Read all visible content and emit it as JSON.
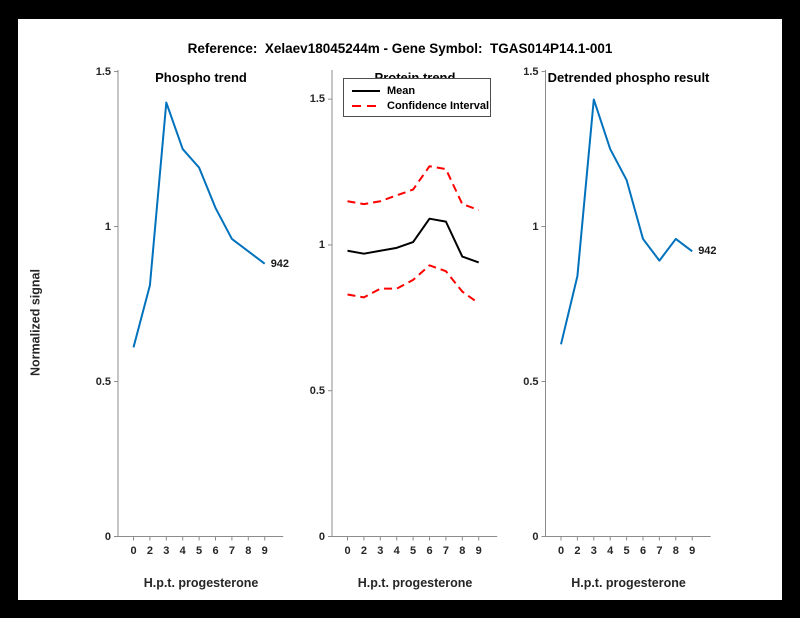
{
  "figure": {
    "title": "Reference:  Xelaev18045244m - Gene Symbol:  TGAS014P14.1-001",
    "background_color": "#000000",
    "figure_color": "#ffffff",
    "accent_blue": "#0072BD",
    "accent_red": "#FF0000",
    "axis_color": "#8c8c8c"
  },
  "chart_data": [
    {
      "type": "line",
      "title": "Phospho trend",
      "xlabel": "H.p.t. progesterone",
      "ylabel": "Normalized signal",
      "categories": [
        "0",
        "2",
        "3",
        "4",
        "5",
        "6",
        "7",
        "8",
        "9"
      ],
      "yticks": [
        0,
        0.5,
        1,
        1.5
      ],
      "ytick_labels": [
        "0",
        "0.5",
        "1",
        "1.5"
      ],
      "ylim": [
        0,
        1.505
      ],
      "grid": false,
      "series": [
        {
          "name": "phospho-trend",
          "color": "#0072BD",
          "style": "solid",
          "values": [
            0.61,
            0.81,
            1.4,
            1.25,
            1.19,
            1.06,
            0.96,
            0.92,
            0.88
          ]
        }
      ],
      "end_label": "942"
    },
    {
      "type": "line",
      "title": "Protein trend",
      "xlabel": "H.p.t. progesterone",
      "ylabel": "",
      "categories": [
        "0",
        "2",
        "3",
        "4",
        "5",
        "6",
        "7",
        "8",
        "9"
      ],
      "yticks": [
        0,
        0.5,
        1,
        1.5
      ],
      "ytick_labels": [
        "0",
        "0.5",
        "1",
        "1.5"
      ],
      "ylim": [
        0,
        1.6
      ],
      "grid": false,
      "legend": [
        {
          "label": "Mean",
          "color": "#000000",
          "style": "solid"
        },
        {
          "label": "Confidence Interval",
          "color": "#FF0000",
          "style": "dashed"
        }
      ],
      "legend_position": "top-left-inside",
      "series": [
        {
          "name": "mean",
          "color": "#000000",
          "style": "solid",
          "values": [
            0.98,
            0.97,
            0.98,
            0.99,
            1.01,
            1.09,
            1.08,
            0.96,
            0.94
          ]
        },
        {
          "name": "ci-upper",
          "color": "#FF0000",
          "style": "dashed",
          "values": [
            1.15,
            1.14,
            1.15,
            1.17,
            1.19,
            1.27,
            1.26,
            1.14,
            1.12
          ]
        },
        {
          "name": "ci-lower",
          "color": "#FF0000",
          "style": "dashed",
          "values": [
            0.83,
            0.82,
            0.85,
            0.85,
            0.88,
            0.93,
            0.91,
            0.84,
            0.8
          ]
        }
      ],
      "end_label": ""
    },
    {
      "type": "line",
      "title": "Detrended phospho result",
      "xlabel": "H.p.t. progesterone",
      "ylabel": "",
      "categories": [
        "0",
        "2",
        "3",
        "4",
        "5",
        "6",
        "7",
        "8",
        "9"
      ],
      "yticks": [
        0,
        0.5,
        1,
        1.5
      ],
      "ytick_labels": [
        "0",
        "0.5",
        "1",
        "1.5"
      ],
      "ylim": [
        0,
        1.505
      ],
      "grid": false,
      "series": [
        {
          "name": "detrended-phospho",
          "color": "#0072BD",
          "style": "solid",
          "values": [
            0.62,
            0.84,
            1.41,
            1.25,
            1.15,
            0.96,
            0.89,
            0.96,
            0.92
          ]
        }
      ],
      "end_label": "942"
    }
  ]
}
